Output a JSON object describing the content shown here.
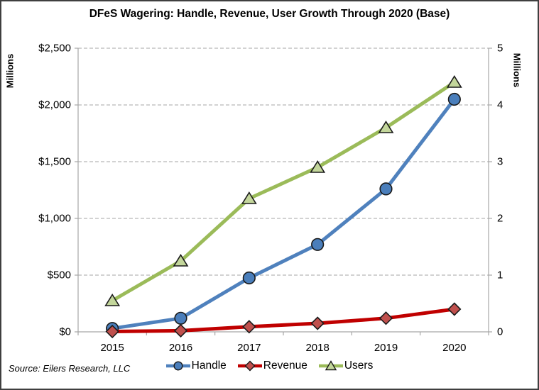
{
  "source_note": "Source: Eilers Research, LLC",
  "colors": {
    "background": "#ffffff",
    "border": "#3f3f3f",
    "grid": "#a6a6a6",
    "axis_line": "#a6a6a6",
    "text": "#000000",
    "handle_line": "#4f81bd",
    "handle_marker": "#4a7ebb",
    "revenue_line": "#c00000",
    "revenue_marker": "#c0504d",
    "users_line": "#9bbb59",
    "users_marker": "#c3d69b",
    "marker_outline": "#1a1a1a"
  },
  "chart_data": {
    "type": "line",
    "title": "DFeS Wagering: Handle, Revenue, User Growth Through 2020 (Base)",
    "categories": [
      "2015",
      "2016",
      "2017",
      "2018",
      "2019",
      "2020"
    ],
    "series": [
      {
        "name": "Handle",
        "axis": "left",
        "marker": "circle",
        "line_color": "#4f81bd",
        "marker_fill": "#4a7ebb",
        "values": [
          30,
          120,
          475,
          770,
          1260,
          2050
        ]
      },
      {
        "name": "Revenue",
        "axis": "left",
        "marker": "diamond",
        "line_color": "#c00000",
        "marker_fill": "#c0504d",
        "values": [
          3,
          10,
          45,
          75,
          120,
          200
        ]
      },
      {
        "name": "Users",
        "axis": "right",
        "marker": "triangle",
        "line_color": "#9bbb59",
        "marker_fill": "#c3d69b",
        "values": [
          0.55,
          1.25,
          2.35,
          2.9,
          3.6,
          4.4
        ]
      }
    ],
    "axes": {
      "left": {
        "title": "Millions",
        "range": [
          0,
          2500
        ],
        "ticks": [
          0,
          500,
          1000,
          1500,
          2000,
          2500
        ],
        "tick_labels": [
          "$0",
          "$500",
          "$1,000",
          "$1,500",
          "$2,000",
          "$2,500"
        ]
      },
      "right": {
        "title": "Millions",
        "range": [
          0,
          5
        ],
        "ticks": [
          0,
          1,
          2,
          3,
          4,
          5
        ],
        "tick_labels": [
          "0",
          "1",
          "2",
          "3",
          "4",
          "5"
        ]
      },
      "x": {
        "categories": [
          "2015",
          "2016",
          "2017",
          "2018",
          "2019",
          "2020"
        ]
      }
    },
    "grid": "horizontal-dashed",
    "legend_position": "bottom",
    "xlabel": "",
    "ylabel_left": "Millions",
    "ylabel_right": "Millions"
  }
}
